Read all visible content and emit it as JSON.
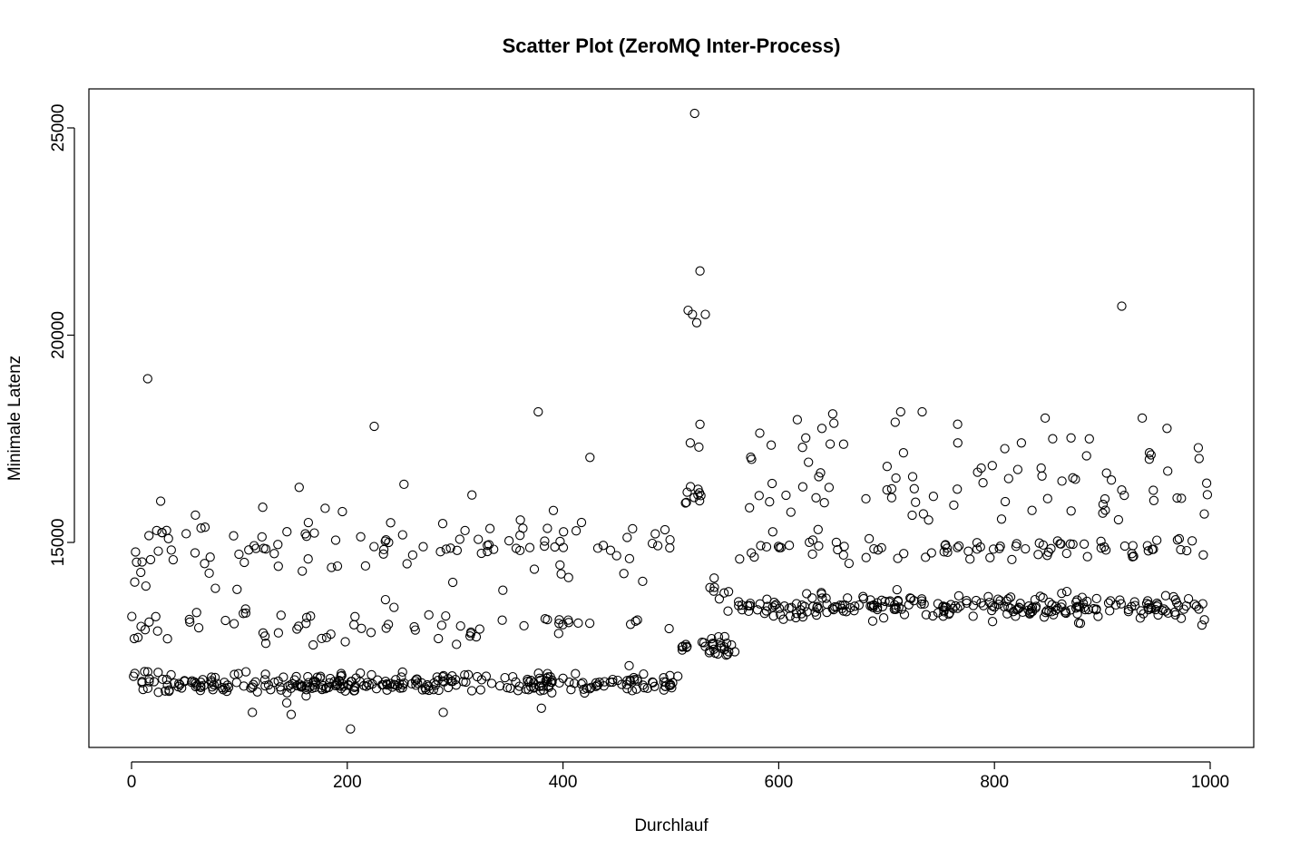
{
  "chart_data": {
    "type": "scatter",
    "title": "Scatter Plot (ZeroMQ Inter-Process)",
    "xlabel": "Durchlauf",
    "ylabel": "Minimale Latenz",
    "xlim": [
      -25,
      1015
    ],
    "ylim": [
      10500,
      25700
    ],
    "x_ticks": [
      0,
      200,
      400,
      600,
      800,
      1000
    ],
    "x_tick_labels": [
      "0",
      "200",
      "400",
      "600",
      "800",
      "1000"
    ],
    "y_ticks": [
      15000,
      20000,
      25000
    ],
    "y_tick_labels": [
      "15000",
      "20000",
      "25000"
    ],
    "grid": false,
    "legend": "none",
    "marker": "open-circle",
    "color": "#000000",
    "n_points": 1000,
    "outliers": [
      {
        "x": 15,
        "y": 18950
      },
      {
        "x": 225,
        "y": 17800
      },
      {
        "x": 377,
        "y": 18150
      },
      {
        "x": 425,
        "y": 17050
      },
      {
        "x": 203,
        "y": 10500
      },
      {
        "x": 148,
        "y": 10850
      },
      {
        "x": 112,
        "y": 10900
      },
      {
        "x": 380,
        "y": 11000
      },
      {
        "x": 289,
        "y": 10900
      },
      {
        "x": 522,
        "y": 25350
      },
      {
        "x": 527,
        "y": 21550
      },
      {
        "x": 516,
        "y": 20600
      },
      {
        "x": 520,
        "y": 20500
      },
      {
        "x": 524,
        "y": 20300
      },
      {
        "x": 532,
        "y": 20500
      },
      {
        "x": 527,
        "y": 17850
      },
      {
        "x": 526,
        "y": 17300
      },
      {
        "x": 518,
        "y": 17400
      },
      {
        "x": 918,
        "y": 20700
      },
      {
        "x": 937,
        "y": 18000
      },
      {
        "x": 960,
        "y": 17750
      },
      {
        "x": 847,
        "y": 18000
      },
      {
        "x": 713,
        "y": 18150
      },
      {
        "x": 733,
        "y": 18150
      },
      {
        "x": 650,
        "y": 18100
      },
      {
        "x": 708,
        "y": 17900
      },
      {
        "x": 640,
        "y": 17750
      },
      {
        "x": 888,
        "y": 17500
      },
      {
        "x": 766,
        "y": 17400
      },
      {
        "x": 825,
        "y": 17400
      }
    ],
    "clusters": [
      {
        "x_range": [
          0,
          510
        ],
        "y_center": 11600,
        "y_spread": 120,
        "count": 300
      },
      {
        "x_range": [
          0,
          510
        ],
        "y_center": 12950,
        "y_spread": 250,
        "count": 70
      },
      {
        "x_range": [
          0,
          510
        ],
        "y_center": 15000,
        "y_spread": 500,
        "count": 120
      },
      {
        "x_range": [
          510,
          520
        ],
        "y_center": 12450,
        "y_spread": 80,
        "count": 6
      },
      {
        "x_range": [
          512,
          528
        ],
        "y_center": 16100,
        "y_spread": 120,
        "count": 10
      },
      {
        "x_range": [
          528,
          560
        ],
        "y_center": 12500,
        "y_spread": 150,
        "count": 25
      },
      {
        "x_range": [
          528,
          560
        ],
        "y_center": 13800,
        "y_spread": 200,
        "count": 8
      },
      {
        "x_range": [
          560,
          1000
        ],
        "y_center": 13450,
        "y_spread": 150,
        "count": 250
      },
      {
        "x_range": [
          560,
          1000
        ],
        "y_center": 14850,
        "y_spread": 150,
        "count": 80
      },
      {
        "x_range": [
          560,
          1000
        ],
        "y_center": 16400,
        "y_spread": 650,
        "count": 85
      }
    ]
  }
}
